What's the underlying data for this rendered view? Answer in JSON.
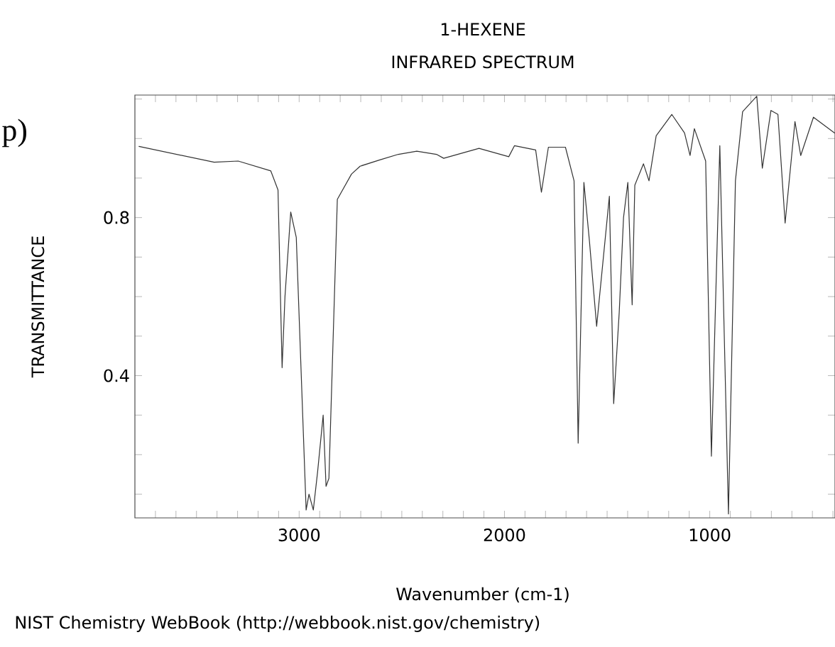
{
  "chart_data": {
    "type": "line",
    "title": "1-HEXENE",
    "subtitle": "INFRARED SPECTRUM",
    "xlabel": "Wavenumber (cm-1)",
    "ylabel": "TRANSMITTANCE",
    "annotations": [
      "p)",
      "NIST Chemistry WebBook (http://webbook.nist.gov/chemistry)"
    ],
    "xlim": [
      3800,
      390
    ],
    "ylim": [
      0.04,
      1.11
    ],
    "xticks": [
      {
        "value": 3700,
        "label": null
      },
      {
        "value": 3600,
        "label": null
      },
      {
        "value": 3500,
        "label": null
      },
      {
        "value": 3400,
        "label": null
      },
      {
        "value": 3300,
        "label": null
      },
      {
        "value": 3200,
        "label": null
      },
      {
        "value": 3100,
        "label": null
      },
      3000,
      {
        "value": 2900,
        "label": null
      },
      {
        "value": 2800,
        "label": null
      },
      {
        "value": 2700,
        "label": null
      },
      {
        "value": 2600,
        "label": null
      },
      {
        "value": 2500,
        "label": null
      },
      {
        "value": 2400,
        "label": null
      },
      {
        "value": 2300,
        "label": null
      },
      {
        "value": 2200,
        "label": null
      },
      {
        "value": 2100,
        "label": null
      },
      2000,
      {
        "value": 1900,
        "label": null
      },
      {
        "value": 1800,
        "label": null
      },
      {
        "value": 1700,
        "label": null
      },
      {
        "value": 1600,
        "label": null
      },
      {
        "value": 1500,
        "label": null
      },
      {
        "value": 1400,
        "label": null
      },
      {
        "value": 1300,
        "label": null
      },
      {
        "value": 1200,
        "label": null
      },
      {
        "value": 1100,
        "label": null
      },
      1000,
      {
        "value": 900,
        "label": null
      },
      {
        "value": 800,
        "label": null
      },
      {
        "value": 700,
        "label": null
      },
      {
        "value": 600,
        "label": null
      },
      {
        "value": 500,
        "label": null
      },
      {
        "value": 400,
        "label": null
      }
    ],
    "yticks": [
      {
        "value": 0.1,
        "label": null
      },
      {
        "value": 0.2,
        "label": null
      },
      {
        "value": 0.3,
        "label": null
      },
      0.4,
      {
        "value": 0.5,
        "label": null
      },
      {
        "value": 0.6,
        "label": null
      },
      {
        "value": 0.7,
        "label": null
      },
      0.8,
      {
        "value": 0.9,
        "label": null
      },
      {
        "value": 1.0,
        "label": null
      },
      {
        "value": 1.1,
        "label": null
      }
    ],
    "grid": false,
    "marker": "none",
    "line_style": "solid",
    "series": [
      {
        "color": "#333333",
        "x": [
          3780,
          3414,
          3297,
          3138,
          3103,
          3083,
          3069,
          3041,
          3014,
          2966,
          2952,
          2931,
          2910,
          2883,
          2869,
          2855,
          2814,
          2745,
          2703,
          2607,
          2517,
          2427,
          2331,
          2296,
          2124,
          1979,
          1951,
          1848,
          1820,
          1786,
          1703,
          1661,
          1641,
          1613,
          1586,
          1551,
          1489,
          1468,
          1441,
          1420,
          1399,
          1378,
          1365,
          1323,
          1296,
          1261,
          1185,
          1123,
          1096,
          1075,
          1020,
          992,
          951,
          909,
          875,
          840,
          771,
          744,
          702,
          668,
          633,
          585,
          557,
          495,
          392
        ],
        "values": [
          0.98,
          0.94,
          0.943,
          0.918,
          0.87,
          0.42,
          0.6,
          0.814,
          0.75,
          0.06,
          0.1,
          0.06,
          0.157,
          0.3,
          0.12,
          0.14,
          0.846,
          0.91,
          0.93,
          0.946,
          0.96,
          0.968,
          0.96,
          0.95,
          0.975,
          0.954,
          0.982,
          0.971,
          0.864,
          0.978,
          0.978,
          0.893,
          0.229,
          0.889,
          0.74,
          0.525,
          0.854,
          0.329,
          0.56,
          0.8,
          0.889,
          0.579,
          0.882,
          0.936,
          0.893,
          1.007,
          1.061,
          1.014,
          0.957,
          1.025,
          0.943,
          0.196,
          0.982,
          0.05,
          0.893,
          1.068,
          1.107,
          0.925,
          1.071,
          1.061,
          0.786,
          1.043,
          0.957,
          1.054,
          1.014
        ]
      }
    ]
  }
}
